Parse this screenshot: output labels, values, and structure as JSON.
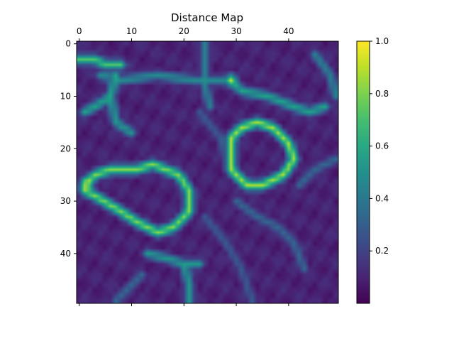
{
  "chart_data": {
    "type": "heatmap",
    "title": "Distance Map",
    "xlabel": "",
    "ylabel": "",
    "xlim": [
      -0.5,
      49.5
    ],
    "ylim": [
      49.5,
      -0.5
    ],
    "x_ticks": [
      0,
      10,
      20,
      30,
      40
    ],
    "y_ticks": [
      0,
      10,
      20,
      30,
      40
    ],
    "x_axis_position": "top",
    "grid": false,
    "colormap": "viridis",
    "colorbar": {
      "min": 0.0,
      "max": 1.0,
      "ticks": [
        "0.2",
        "0.4",
        "0.6",
        "0.8",
        "1.0"
      ]
    },
    "value_range": [
      0.0,
      1.0
    ],
    "colors": {
      "low": "#440154",
      "mid": "#21918c",
      "high": "#fde725"
    },
    "features": [
      {
        "type": "ridge",
        "points": [
          [
            0,
            3
          ],
          [
            3,
            3
          ],
          [
            5,
            4
          ],
          [
            8,
            4
          ]
        ],
        "value": 0.75
      },
      {
        "type": "ridge",
        "points": [
          [
            1,
            13
          ],
          [
            3,
            12
          ],
          [
            6,
            10
          ],
          [
            7,
            6
          ]
        ],
        "value": 0.6
      },
      {
        "type": "ridge",
        "points": [
          [
            6,
            10
          ],
          [
            7,
            15
          ],
          [
            10,
            17
          ]
        ],
        "value": 0.55
      },
      {
        "type": "ridge",
        "points": [
          [
            4,
            6
          ],
          [
            8,
            7
          ],
          [
            15,
            6
          ],
          [
            22,
            7
          ],
          [
            26,
            7
          ],
          [
            29,
            7
          ]
        ],
        "value": 0.5
      },
      {
        "type": "ridge",
        "points": [
          [
            29,
            7
          ],
          [
            31,
            9
          ],
          [
            36,
            10
          ],
          [
            41,
            12
          ],
          [
            44,
            13
          ],
          [
            47,
            12
          ]
        ],
        "value": 0.6
      },
      {
        "type": "ridge",
        "points": [
          [
            24,
            0
          ],
          [
            24,
            4
          ],
          [
            24,
            8
          ],
          [
            25,
            12
          ]
        ],
        "value": 0.45
      },
      {
        "type": "ridge",
        "points": [
          [
            45,
            2
          ],
          [
            48,
            6
          ],
          [
            49,
            10
          ]
        ],
        "value": 0.45
      },
      {
        "type": "loop",
        "points": [
          [
            1,
            27
          ],
          [
            3,
            25
          ],
          [
            6,
            24
          ],
          [
            9,
            24
          ],
          [
            11,
            24
          ],
          [
            14,
            23
          ],
          [
            19,
            25
          ],
          [
            21,
            28
          ],
          [
            21,
            32
          ],
          [
            18,
            35
          ],
          [
            15,
            36
          ],
          [
            11,
            34
          ],
          [
            8,
            32
          ],
          [
            3,
            29
          ],
          [
            1,
            28
          ],
          [
            1,
            27
          ]
        ],
        "value": 0.85
      },
      {
        "type": "loop",
        "points": [
          [
            29,
            18
          ],
          [
            31,
            16
          ],
          [
            34,
            15
          ],
          [
            37,
            16
          ],
          [
            40,
            19
          ],
          [
            41,
            22
          ],
          [
            39,
            25
          ],
          [
            35,
            27
          ],
          [
            32,
            27
          ],
          [
            29,
            24
          ],
          [
            29,
            21
          ],
          [
            29,
            18
          ]
        ],
        "value": 0.9
      },
      {
        "type": "ridge",
        "points": [
          [
            13,
            40
          ],
          [
            17,
            41
          ],
          [
            20,
            42
          ],
          [
            23,
            42
          ]
        ],
        "value": 0.55
      },
      {
        "type": "ridge",
        "points": [
          [
            20,
            42
          ],
          [
            21,
            46
          ],
          [
            21,
            49
          ]
        ],
        "value": 0.55
      },
      {
        "type": "ridge",
        "points": [
          [
            30,
            30
          ],
          [
            34,
            33
          ],
          [
            38,
            35
          ],
          [
            41,
            38
          ],
          [
            43,
            43
          ]
        ],
        "value": 0.35
      },
      {
        "type": "ridge",
        "points": [
          [
            24,
            33
          ],
          [
            28,
            38
          ],
          [
            31,
            43
          ],
          [
            33,
            49
          ]
        ],
        "value": 0.3
      },
      {
        "type": "ridge",
        "points": [
          [
            42,
            27
          ],
          [
            45,
            24
          ],
          [
            49,
            22
          ]
        ],
        "value": 0.35
      },
      {
        "type": "ridge",
        "points": [
          [
            12,
            44
          ],
          [
            9,
            47
          ],
          [
            7,
            49
          ]
        ],
        "value": 0.35
      },
      {
        "type": "ridge",
        "points": [
          [
            23,
            13
          ],
          [
            27,
            18
          ],
          [
            28,
            22
          ]
        ],
        "value": 0.3
      },
      {
        "type": "peak",
        "points": [
          [
            1.5,
            26.5
          ]
        ],
        "value": 1.0
      },
      {
        "type": "peak",
        "points": [
          [
            29,
            7
          ]
        ],
        "value": 0.95
      }
    ]
  }
}
